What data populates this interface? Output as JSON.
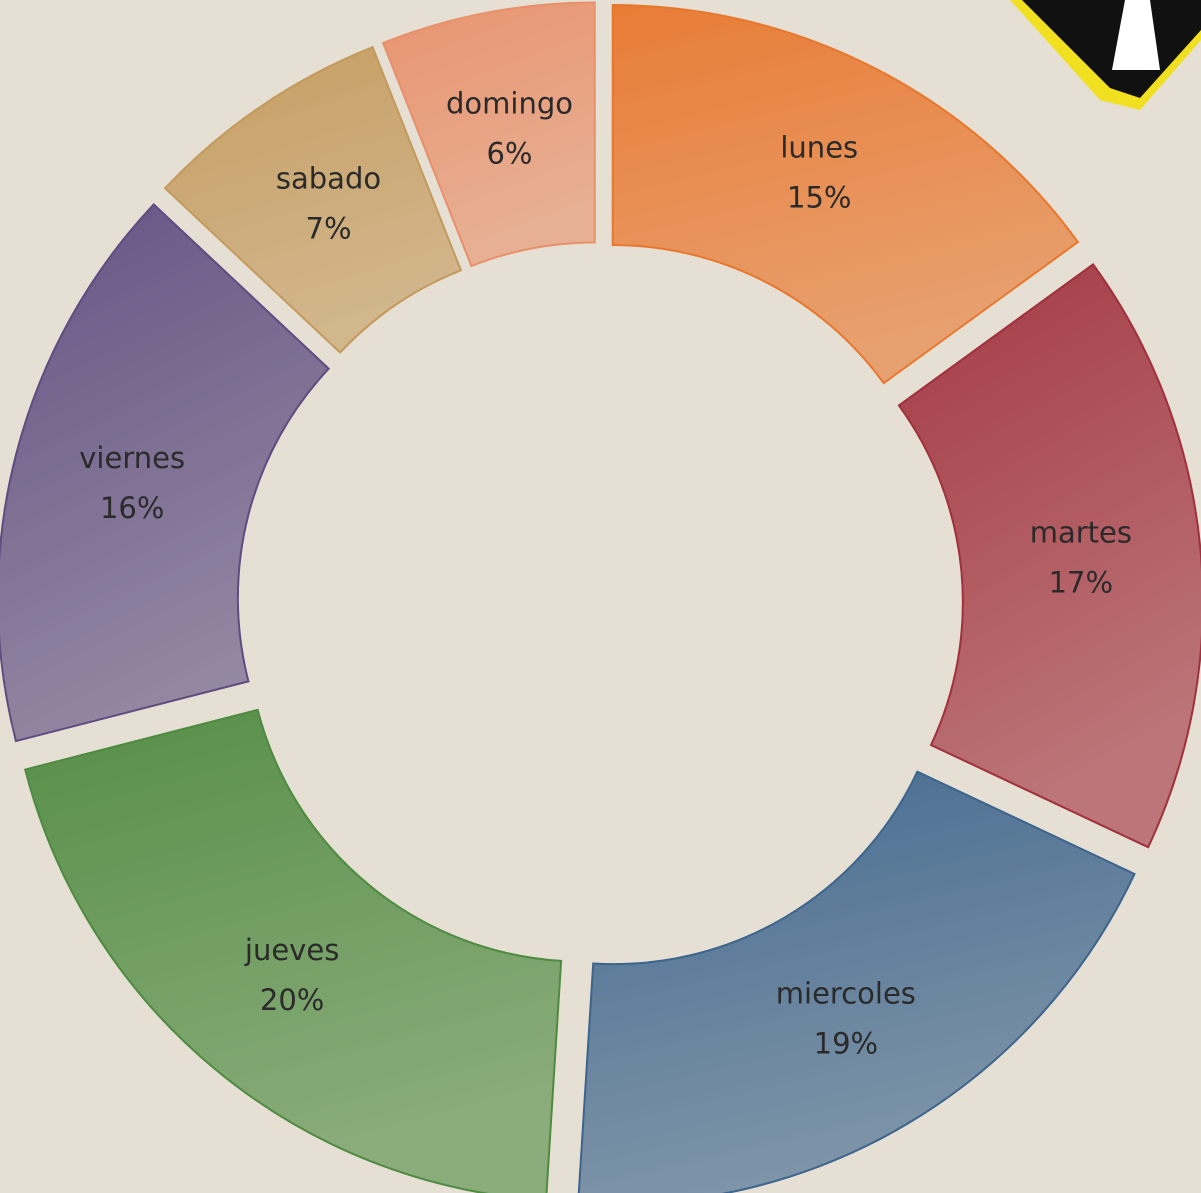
{
  "chart_data": {
    "type": "donut",
    "categories": [
      "lunes",
      "martes",
      "miercoles",
      "jueves",
      "viernes",
      "sabado",
      "domingo"
    ],
    "values": [
      15,
      17,
      19,
      20,
      16,
      7,
      6
    ],
    "value_labels": [
      "15%",
      "17%",
      "19%",
      "20%",
      "16%",
      "7%",
      "6%"
    ],
    "colors": [
      "#e8772e",
      "#a0303c",
      "#3c648c",
      "#4e8a40",
      "#5e4c80",
      "#c49a5c",
      "#e8906a"
    ]
  }
}
